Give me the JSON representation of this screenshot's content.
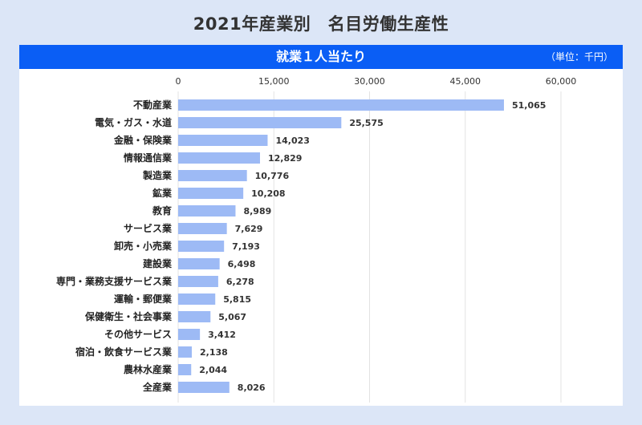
{
  "title": "2021年産業別　名目労働生産性",
  "chart_data": {
    "type": "bar",
    "orientation": "horizontal",
    "subtitle": "就業１人当たり",
    "unit_note": "（単位：千円）",
    "xlim": [
      0,
      60000
    ],
    "ticks": [
      0,
      15000,
      30000,
      45000,
      60000
    ],
    "tick_labels": [
      "0",
      "15,000",
      "30,000",
      "45,000",
      "60,000"
    ],
    "grid": true,
    "bar_color": "#9dbaf5",
    "categories": [
      "不動産業",
      "電気・ガス・水道",
      "金融・保険業",
      "情報通信業",
      "製造業",
      "鉱業",
      "教育",
      "サービス業",
      "卸売・小売業",
      "建設業",
      "専門・業務支援サービス業",
      "運輸・郵便業",
      "保健衛生・社会事業",
      "その他サービス",
      "宿泊・飲食サービス業",
      "農林水産業",
      "全産業"
    ],
    "values": [
      51065,
      25575,
      14023,
      12829,
      10776,
      10208,
      8989,
      7629,
      7193,
      6498,
      6278,
      5815,
      5067,
      3412,
      2138,
      2044,
      8026
    ],
    "value_labels": [
      "51,065",
      "25,575",
      "14,023",
      "12,829",
      "10,776",
      "10,208",
      "8,989",
      "7,629",
      "7,193",
      "6,498",
      "6,278",
      "5,815",
      "5,067",
      "3,412",
      "2,138",
      "2,044",
      "8,026"
    ]
  }
}
